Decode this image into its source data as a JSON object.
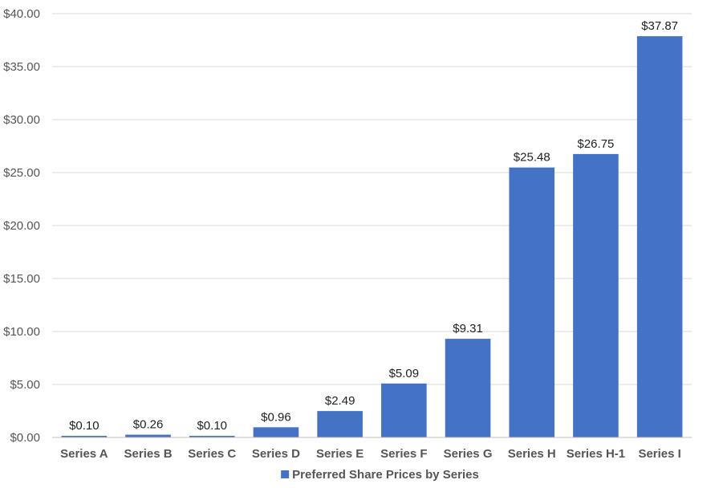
{
  "chart_data": {
    "type": "bar",
    "categories": [
      "Series A",
      "Series B",
      "Series C",
      "Series D",
      "Series E",
      "Series F",
      "Series G",
      "Series H",
      "Series H-1",
      "Series I"
    ],
    "series": [
      {
        "name": "Preferred Share Prices by Series",
        "values": [
          0.1,
          0.26,
          0.1,
          0.96,
          2.49,
          5.09,
          9.31,
          25.48,
          26.75,
          37.87
        ],
        "data_labels": [
          "$0.10",
          "$0.26",
          "$0.10",
          "$0.96",
          "$2.49",
          "$5.09",
          "$9.31",
          "$25.48",
          "$26.75",
          "$37.87"
        ]
      }
    ],
    "yticks": [
      "$0.00",
      "$5.00",
      "$10.00",
      "$15.00",
      "$20.00",
      "$25.00",
      "$30.00",
      "$35.00",
      "$40.00"
    ],
    "ylim": [
      0,
      40
    ],
    "grid": true,
    "legend_position": "bottom",
    "bar_color": "#4472c4"
  }
}
